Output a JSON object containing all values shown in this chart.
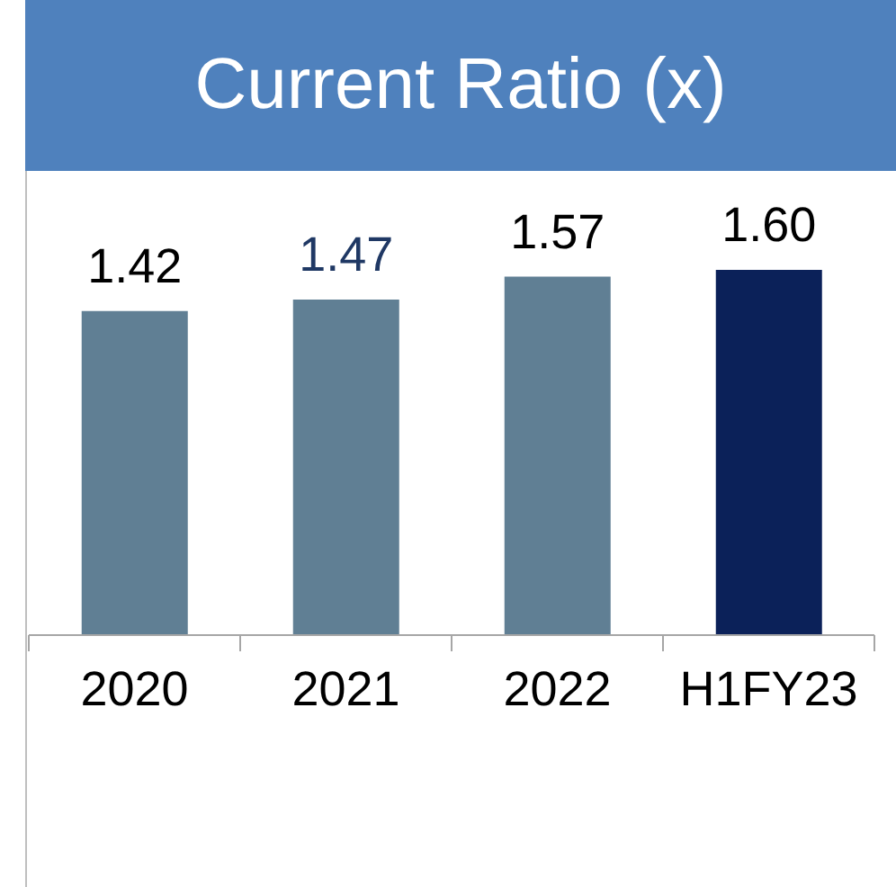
{
  "chart_data": {
    "type": "bar",
    "title": "Current Ratio (x)",
    "categories": [
      "2020",
      "2021",
      "2022",
      "H1FY23"
    ],
    "values": [
      1.42,
      1.47,
      1.57,
      1.6
    ],
    "value_labels": [
      "1.42",
      "1.47",
      "1.57",
      "1.60"
    ],
    "colors": [
      "#607f94",
      "#607f94",
      "#607f94",
      "#0b2159"
    ],
    "data_labels": false,
    "grid": false,
    "legend": false
  }
}
